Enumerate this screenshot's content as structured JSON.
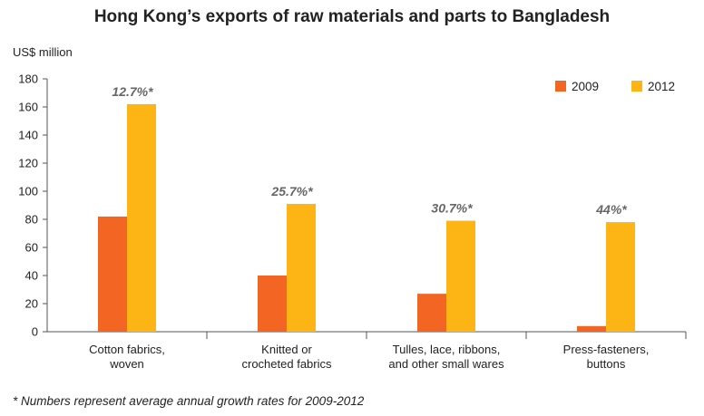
{
  "chart_data": {
    "type": "bar",
    "title": "Hong Kong’s exports of raw materials and parts to Bangladesh",
    "ylabel": "US$ million",
    "ylim": [
      0,
      180
    ],
    "yticks": [
      "0",
      "20",
      "40",
      "60",
      "80",
      "100",
      "120",
      "140",
      "160",
      "180"
    ],
    "categories": [
      [
        "Cotton fabrics,",
        "woven"
      ],
      [
        "Knitted or",
        "crocheted fabrics"
      ],
      [
        "Tulles, lace, ribbons,",
        "and other small wares"
      ],
      [
        "Press-fasteners,",
        "buttons"
      ]
    ],
    "series": [
      {
        "name": "2009",
        "color": "#f26522",
        "values": [
          82,
          40,
          27,
          4
        ]
      },
      {
        "name": "2012",
        "color": "#fdb515",
        "values": [
          162,
          91,
          79,
          78
        ]
      }
    ],
    "annotations": [
      "12.7%*",
      "25.7%*",
      "30.7%*",
      "44%*"
    ],
    "legend_position": "top-right",
    "grid": false
  },
  "footnote": "* Numbers represent average annual growth rates for 2009-2012"
}
